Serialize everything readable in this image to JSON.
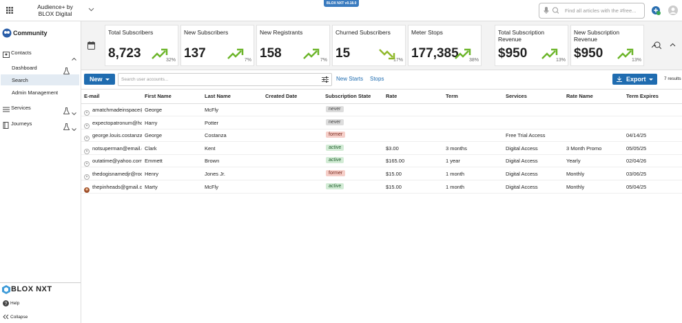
{
  "header": {
    "app_name": [
      "Audience+ by",
      "BLOX Digital"
    ],
    "version": "BLOX NXT v0.18.0",
    "search_placeholder": "Find all articles with the #free..."
  },
  "sidebar": {
    "section": "Community",
    "nav": [
      {
        "label": "Contacts",
        "children": [
          "Dashboard",
          "Search",
          "Admin Management"
        ]
      },
      {
        "label": "Services"
      },
      {
        "label": "Journeys"
      }
    ],
    "logo": "BLOX NXT",
    "help": "Help",
    "collapse": "Collapse"
  },
  "kpis": [
    {
      "title": "Total Subscribers",
      "value": "8,723",
      "change": "32%",
      "trend": "up"
    },
    {
      "title": "New Subscribers",
      "value": "137",
      "change": "7%",
      "trend": "up"
    },
    {
      "title": "New Registrants",
      "value": "158",
      "change": "7%",
      "trend": "up"
    },
    {
      "title": "Churned Subscribers",
      "value": "15",
      "change": "17%",
      "trend": "down"
    },
    {
      "title": "Meter Stops",
      "value": "177,385",
      "change": "38%",
      "trend": "up"
    },
    {
      "title": "Total Subscription Revenue",
      "value": "$950",
      "change": "13%",
      "trend": "up"
    },
    {
      "title": "New Subscription Revenue",
      "value": "$950",
      "change": "13%",
      "trend": "up"
    }
  ],
  "toolbar": {
    "new": "New",
    "search_placeholder": "Search user accounts...",
    "links": [
      "New Starts",
      "Stops"
    ],
    "export": "Export",
    "results": "7 results"
  },
  "table": {
    "columns": [
      "E-mail",
      "First Name",
      "Last Name",
      "Created Date",
      "Subscription State",
      "Rate",
      "Term",
      "Services",
      "Rate Name",
      "Term Expires"
    ],
    "rows": [
      [
        "amatchmadeinspace@",
        "George",
        "McFly",
        null,
        "never",
        null,
        null,
        null,
        null,
        null
      ],
      [
        "expectopatronum@ho",
        "Harry",
        "Potter",
        null,
        "never",
        null,
        null,
        null,
        null,
        null
      ],
      [
        "george.louis.costanza",
        "George",
        "Costanza",
        null,
        "former",
        null,
        null,
        "Free Trial Access",
        null,
        "04/14/25"
      ],
      [
        "notsuperman@email.c",
        "Clark",
        "Kent",
        null,
        "active",
        "$3.00",
        "3 months",
        "Digital Access",
        "3 Month Promo",
        "05/05/25"
      ],
      [
        "outatime@yahoo.com",
        "Emmett",
        "Brown",
        null,
        "active",
        "$165.00",
        "1 year",
        "Digital Access",
        "Yearly",
        "02/04/26"
      ],
      [
        "thedogisnamedjr@roc",
        "Henry",
        "Jones Jr.",
        null,
        "former",
        "$15.00",
        "1 month",
        "Digital Access",
        "Monthly",
        "03/06/25"
      ],
      [
        "thepinheads@gmail.c",
        "Marty",
        "McFly",
        null,
        "active",
        "$15.00",
        "1 month",
        "Digital Access",
        "Monthly",
        "05/04/25"
      ]
    ]
  }
}
